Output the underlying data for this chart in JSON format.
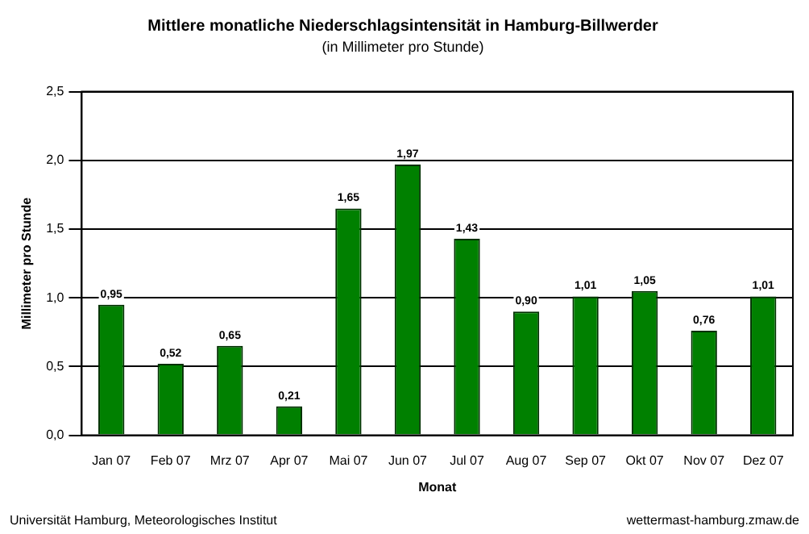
{
  "chart_data": {
    "type": "bar",
    "title": "Mittlere monatliche Niederschlagsintensität in Hamburg-Billwerder",
    "subtitle": "(in Millimeter pro Stunde)",
    "xlabel": "Monat",
    "ylabel": "Millimeter pro Stunde",
    "categories": [
      "Jan 07",
      "Feb 07",
      "Mrz 07",
      "Apr 07",
      "Mai 07",
      "Jun 07",
      "Jul 07",
      "Aug 07",
      "Sep 07",
      "Okt 07",
      "Nov 07",
      "Dez 07"
    ],
    "values": [
      0.95,
      0.52,
      0.65,
      0.21,
      1.65,
      1.97,
      1.43,
      0.9,
      1.01,
      1.05,
      0.76,
      1.01
    ],
    "value_labels": [
      "0,95",
      "0,52",
      "0,65",
      "0,21",
      "1,65",
      "1,97",
      "1,43",
      "0,90",
      "1,01",
      "1,05",
      "0,76",
      "1,01"
    ],
    "color": "#008000",
    "ylim": [
      0,
      2.5
    ],
    "yticks": [
      {
        "value": 0,
        "label": "0,0"
      },
      {
        "value": 0.5,
        "label": "0,5"
      },
      {
        "value": 1,
        "label": "1,0"
      },
      {
        "value": 1.5,
        "label": "1,5"
      },
      {
        "value": 2,
        "label": "2,0"
      },
      {
        "value": 2.5,
        "label": "2,5"
      }
    ],
    "grid": "y",
    "annotations": [
      "Universität Hamburg, Meteorologisches Institut",
      "wettermast-hamburg.zmaw.de"
    ]
  }
}
